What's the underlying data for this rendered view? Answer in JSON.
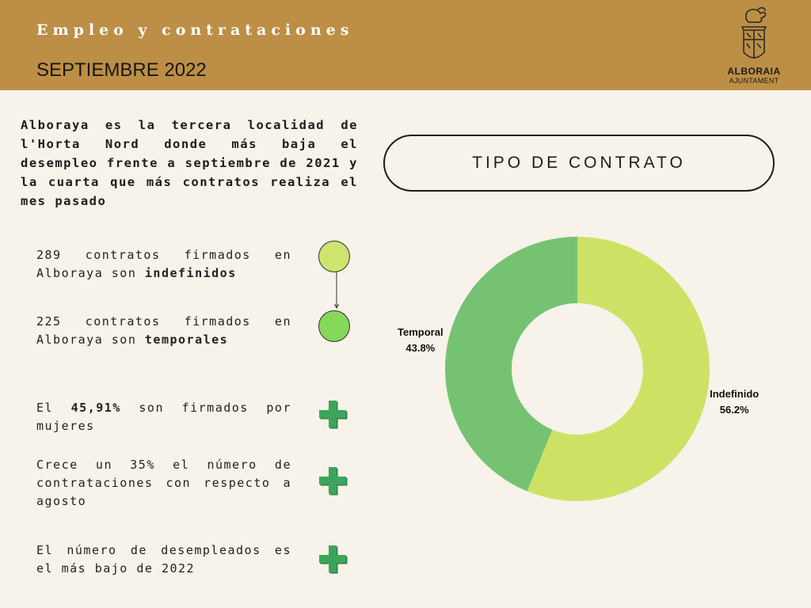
{
  "header": {
    "title": "Empleo y contrataciones",
    "subtitle": "SEPTIEMBRE 2022",
    "logo": {
      "name": "ALBORAIA",
      "sub": "AJUNTAMENT",
      "icon": "coat-of-arms-icon"
    },
    "background": "#bd8e45"
  },
  "intro": "Alboraya es la tercera localidad de l'Horta Nord donde más baja el desempleo frente a septiembre de 2021 y la cuarta que más contratos realiza el mes pasado",
  "stats": {
    "indefinidos": {
      "pre": "289 contratos firmados en Alboraya son ",
      "bold": "indefinidos"
    },
    "temporales": {
      "pre": "225 contratos firmados en Alboraya son ",
      "bold": "temporales"
    },
    "mujeres": {
      "pre": "El ",
      "bold": "45,91%",
      "post": " son firmados por mujeres"
    },
    "crece": "Crece un 35% el número de contrataciones con respecto a agosto",
    "desempleados": "El número de desempleados es el más bajo de 2022"
  },
  "colors": {
    "indefinido": "#cde265",
    "temporal": "#75c372",
    "plus": "#3aa55b",
    "light_green_circle": "#cde56f",
    "green_circle": "#86d85a"
  },
  "pill_label": "TIPO DE CONTRATO",
  "chart_data": {
    "type": "pie",
    "donut": true,
    "title": "TIPO DE CONTRATO",
    "categories": [
      "Indefinido",
      "Temporal"
    ],
    "values": [
      56.2,
      43.8
    ],
    "labels": [
      "56.2%",
      "43.8%"
    ],
    "colors": [
      "#cde265",
      "#75c372"
    ],
    "start_angle": "top",
    "direction": "clockwise"
  }
}
